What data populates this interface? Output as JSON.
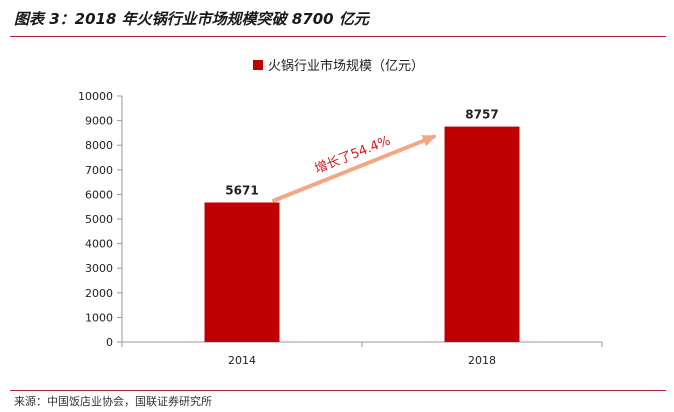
{
  "figure": {
    "title": "图表 3：2018 年火锅行业市场规模突破 8700 亿元",
    "source": "来源：中国饭店业协会，国联证券研究所"
  },
  "chart_data": {
    "type": "bar",
    "categories": [
      "2014",
      "2018"
    ],
    "series": [
      {
        "name": "火锅行业市场规模（亿元）",
        "values": [
          5671,
          8757
        ],
        "color": "#c00000"
      }
    ],
    "data_labels": [
      "5671",
      "8757"
    ],
    "ylim": [
      0,
      10000
    ],
    "yticks": [
      0,
      1000,
      2000,
      3000,
      4000,
      5000,
      6000,
      7000,
      8000,
      9000,
      10000
    ],
    "legend": "top-center",
    "grid": false,
    "annotation": {
      "text": "增长了54.4%",
      "color": "#d81820",
      "arrow_color": "#f4a582"
    }
  }
}
